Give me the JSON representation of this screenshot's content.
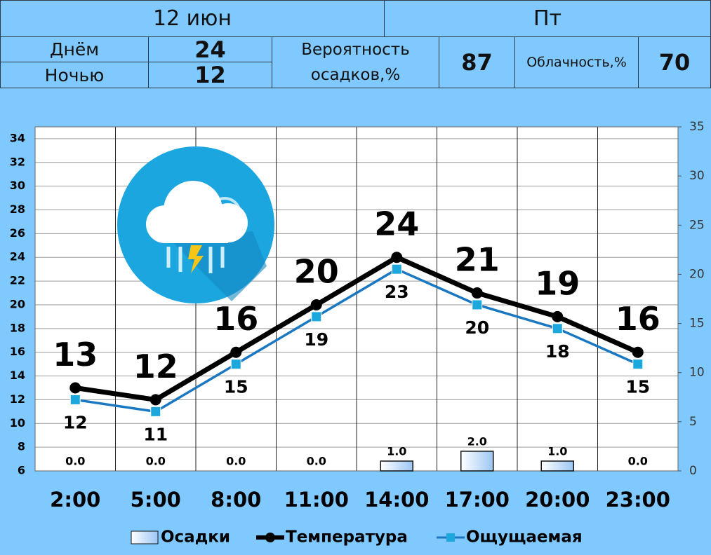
{
  "header": {
    "date": "12 июн",
    "weekday": "Пт"
  },
  "summary": {
    "day_label": "Днём",
    "day_value": 24,
    "night_label": "Ночью",
    "night_value": 12,
    "precip_prob_label": "Вероятность осадков,%",
    "precip_prob_value": 87,
    "cloud_label": "Облачность,%",
    "cloud_value": 70
  },
  "chart_data": {
    "type": "combo",
    "categories": [
      "2:00",
      "5:00",
      "8:00",
      "11:00",
      "14:00",
      "17:00",
      "20:00",
      "23:00"
    ],
    "series": [
      {
        "name": "Осадки",
        "type": "bar",
        "axis": "y2",
        "color": "#cfe4fb",
        "values": [
          0,
          0,
          0,
          0,
          1,
          2,
          1,
          0
        ],
        "value_labels": [
          "0.0",
          "0.0",
          "0.0",
          "0.0",
          "1.0",
          "2.0",
          "1.0",
          "0.0"
        ]
      },
      {
        "name": "Температура",
        "type": "line",
        "color": "#000000",
        "marker": "circle",
        "label_position": "above",
        "values": [
          13,
          12,
          16,
          20,
          24,
          21,
          19,
          16
        ]
      },
      {
        "name": "Ощущаемая",
        "type": "line",
        "color": "#1a78c2",
        "marker": "square",
        "marker_color": "#1ca8dc",
        "label_position": "below",
        "values": [
          12,
          11,
          15,
          19,
          23,
          20,
          18,
          15
        ]
      }
    ],
    "ylim": [
      6,
      35
    ],
    "yticks": [
      6,
      8,
      10,
      12,
      14,
      16,
      18,
      20,
      22,
      24,
      26,
      28,
      30,
      32,
      34
    ],
    "y2lim": [
      0,
      35
    ],
    "y2ticks": [
      0,
      5,
      10,
      15,
      20,
      25,
      30,
      35
    ],
    "grid": true,
    "legend": "bottom"
  }
}
